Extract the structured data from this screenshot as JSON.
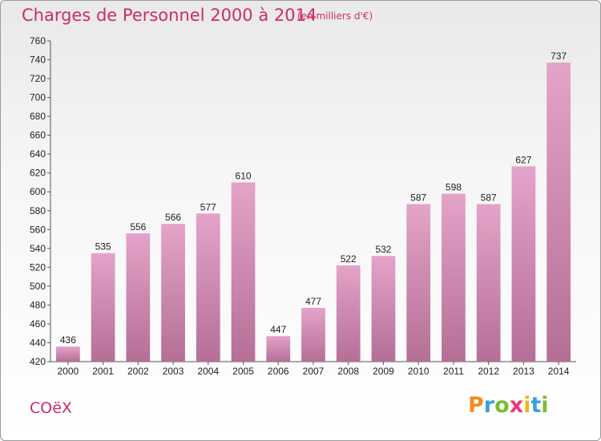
{
  "title": "Charges de Personnel 2000 à 2014",
  "subtitle": "(en milliers d'€)",
  "commune": "COëX",
  "brand": {
    "letters": [
      "P",
      "r",
      "o",
      "x",
      "i",
      "t",
      "i"
    ],
    "colors": [
      "#f28c1e",
      "#3aa0dc",
      "#7bbd32",
      "#e83a7a",
      "#f2b31e",
      "#3aa0dc",
      "#7bbd32"
    ]
  },
  "chart_data": {
    "type": "bar",
    "title": "Charges de Personnel 2000 à 2014",
    "categories": [
      "2000",
      "2001",
      "2002",
      "2003",
      "2004",
      "2005",
      "2006",
      "2007",
      "2008",
      "2009",
      "2010",
      "2011",
      "2012",
      "2013",
      "2014"
    ],
    "values": [
      436,
      535,
      556,
      566,
      577,
      610,
      447,
      477,
      522,
      532,
      587,
      598,
      587,
      627,
      737
    ],
    "ylim": [
      420,
      760
    ],
    "yticks": [
      420,
      440,
      460,
      480,
      500,
      520,
      540,
      560,
      580,
      600,
      620,
      640,
      660,
      680,
      700,
      720,
      740,
      760
    ],
    "grid": false,
    "bar_color_top": "#e4a3c8",
    "bar_color_bottom": "#b56f96"
  }
}
